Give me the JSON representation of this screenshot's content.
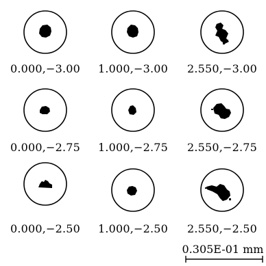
{
  "spots": [
    {
      "label": "0.000,−3.00"
    },
    {
      "label": "1.000,−3.00"
    },
    {
      "label": "2.550,−3.00"
    },
    {
      "label": "0.000,−2.75"
    },
    {
      "label": "1.000,−2.75"
    },
    {
      "label": "2.550,−2.75"
    },
    {
      "label": "0.000,−2.50"
    },
    {
      "label": "1.000,−2.50"
    },
    {
      "label": "2.550,−2.50"
    }
  ],
  "scale": {
    "label": "0.305E-01 mm"
  }
}
